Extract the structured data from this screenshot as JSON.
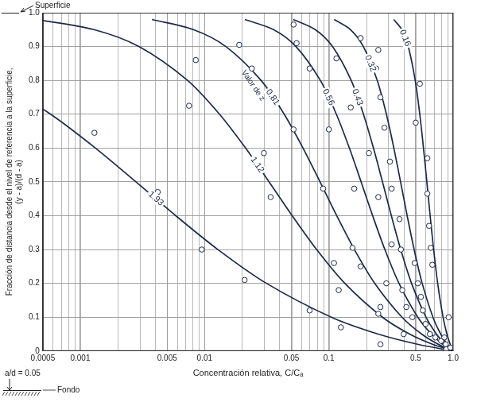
{
  "chart_data": {
    "type": "line",
    "x_label": "Concentración relativa, C/Cₐ",
    "y_label": [
      "Fracción de distancia desde el nivel de referencia a la superficie,",
      "(y - a)/(d - a)"
    ],
    "annotations": {
      "surface": "Superficie",
      "z_caption": "Valor de z",
      "ratio": "a/d = 0.05",
      "bottom": "Fondo"
    },
    "log": "x",
    "grid": true,
    "xlim": [
      0.0005,
      1
    ],
    "xticks": [
      0.0005,
      0.001,
      0.005,
      0.01,
      0.05,
      0.1,
      0.5,
      {
        "value": 1,
        "label": "1.0"
      }
    ],
    "ylim": [
      0,
      1
    ],
    "yticks": [
      0,
      0.1,
      0.2,
      0.3,
      0.4,
      0.5,
      0.6,
      0.7,
      0.8,
      0.9,
      {
        "value": 1,
        "label": "1.0"
      }
    ],
    "color": "#1c2a48",
    "series": [
      {
        "name": "1.93",
        "type": "line",
        "color": "#1c2a48",
        "line_style": "solid",
        "x": [
          1,
          0.5164,
          0.2496,
          0.1046,
          0.03149,
          0.0128,
          0.005865,
          0.002806,
          0.001324,
          0.000577,
          0.000207
        ],
        "values": [
          0,
          0.02,
          0.05,
          0.1,
          0.2,
          0.3,
          0.4,
          0.5,
          0.6,
          0.7,
          0.8
        ]
      },
      {
        "name": "1.12",
        "type": "line",
        "color": "#1c2a48",
        "line_style": "solid",
        "x": [
          1,
          0.6815,
          0.4469,
          0.2698,
          0.1344,
          0.07971,
          0.0507,
          0.03306,
          0.02137,
          0.01319,
          0.00729,
          0.002962,
          0.001287,
          0.000446
        ],
        "values": [
          0,
          0.02,
          0.05,
          0.1,
          0.2,
          0.3,
          0.4,
          0.5,
          0.6,
          0.7,
          0.8,
          0.9,
          0.95,
          0.98
        ]
      },
      {
        "name": "0.81",
        "type": "line",
        "color": "#1c2a48",
        "line_style": "solid",
        "x": [
          1,
          0.7578,
          0.5585,
          0.3877,
          0.2342,
          0.1605,
          0.1157,
          0.08492,
          0.06194,
          0.04372,
          0.02847,
          0.01484,
          0.008122,
          0.003772
        ],
        "values": [
          0,
          0.02,
          0.05,
          0.1,
          0.2,
          0.3,
          0.4,
          0.5,
          0.6,
          0.7,
          0.8,
          0.9,
          0.95,
          0.98
        ]
      },
      {
        "name": "0.56",
        "type": "line",
        "color": "#1c2a48",
        "line_style": "solid",
        "x": [
          1,
          0.8256,
          0.6685,
          0.5194,
          0.3666,
          0.2823,
          0.2251,
          0.1818,
          0.1462,
          0.1149,
          0.08537,
          0.05441,
          0.03587,
          0.02112
        ],
        "values": [
          0,
          0.02,
          0.05,
          0.1,
          0.2,
          0.3,
          0.4,
          0.5,
          0.6,
          0.7,
          0.8,
          0.9,
          0.95,
          0.98
        ]
      },
      {
        "name": "0.43",
        "type": "line",
        "color": "#1c2a48",
        "line_style": "solid",
        "x": [
          1,
          0.8631,
          0.7341,
          0.6046,
          0.4628,
          0.3786,
          0.3183,
          0.2701,
          0.2284,
          0.1898,
          0.1512,
          0.107,
          0.07767,
          0.0517
        ],
        "values": [
          0,
          0.02,
          0.05,
          0.1,
          0.2,
          0.3,
          0.4,
          0.5,
          0.6,
          0.7,
          0.8,
          0.9,
          0.95,
          0.98
        ]
      },
      {
        "name": "0.32",
        "type": "line",
        "color": "#1c2a48",
        "line_style": "solid",
        "x": [
          1,
          0.8962,
          0.7945,
          0.6877,
          0.5636,
          0.4854,
          0.4266,
          0.3775,
          0.3333,
          0.2904,
          0.2451,
          0.1895,
          0.1493,
          0.1103
        ],
        "values": [
          0,
          0.02,
          0.05,
          0.1,
          0.2,
          0.3,
          0.4,
          0.5,
          0.6,
          0.7,
          0.8,
          0.9,
          0.95,
          0.98
        ]
      },
      {
        "name": "0.16",
        "type": "line",
        "color": "#1c2a48",
        "line_style": "solid",
        "x": [
          1,
          0.9467,
          0.8913,
          0.8293,
          0.7508,
          0.6967,
          0.6531,
          0.6144,
          0.5773,
          0.5389,
          0.495,
          0.4353,
          0.3864,
          0.3322
        ],
        "values": [
          0,
          0.02,
          0.05,
          0.1,
          0.2,
          0.3,
          0.4,
          0.5,
          0.6,
          0.7,
          0.8,
          0.9,
          0.95,
          0.98
        ]
      },
      {
        "type": "scatter",
        "marker": "circle",
        "color": "#1c2a48",
        "x": [
          0.0013,
          0.0042,
          0.0095,
          0.021,
          0.0075,
          0.0085,
          0.034,
          0.03,
          0.07,
          0.019,
          0.024,
          0.052,
          0.09,
          0.11,
          0.125,
          0.052,
          0.055,
          0.07,
          0.1,
          0.16,
          0.155,
          0.18,
          0.12,
          0.115,
          0.15,
          0.18,
          0.21,
          0.25,
          0.25,
          0.26,
          0.26,
          0.29,
          0.25,
          0.24,
          0.26,
          0.28,
          0.31,
          0.32,
          0.37,
          0.32,
          0.38,
          0.39,
          0.42,
          0.47,
          0.4,
          0.54,
          0.5,
          0.62,
          0.62,
          0.64,
          0.66,
          0.68,
          0.49,
          0.52,
          0.55,
          0.57,
          0.6,
          0.65,
          0.72,
          0.8,
          0.85,
          0.87,
          0.92,
          0.88,
          0.95
        ],
        "values": [
          0.645,
          0.47,
          0.3,
          0.21,
          0.725,
          0.86,
          0.455,
          0.585,
          0.12,
          0.905,
          0.835,
          0.655,
          0.48,
          0.26,
          0.07,
          0.965,
          0.91,
          0.835,
          0.655,
          0.48,
          0.305,
          0.25,
          0.18,
          0.865,
          0.72,
          0.925,
          0.585,
          0.455,
          0.11,
          0.02,
          0.13,
          0.2,
          0.89,
          0.835,
          0.75,
          0.66,
          0.56,
          0.48,
          0.39,
          0.315,
          0.3,
          0.18,
          0.13,
          0.1,
          0.05,
          0.79,
          0.675,
          0.57,
          0.465,
          0.37,
          0.305,
          0.255,
          0.26,
          0.2,
          0.16,
          0.12,
          0.08,
          0.05,
          0.04,
          0.03,
          0.04,
          0.02,
          0.1,
          0.005,
          0.01
        ]
      }
    ]
  }
}
